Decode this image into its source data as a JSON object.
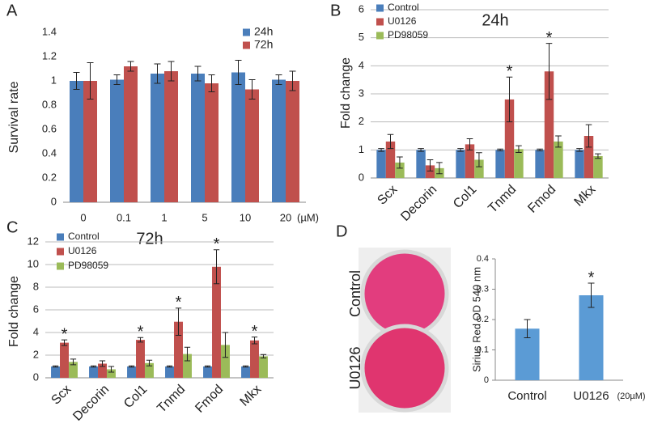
{
  "chart_data": [
    {
      "panel": "A",
      "type": "bar",
      "ylabel": "Survival rate",
      "categories": [
        "0",
        "0.1",
        "1",
        "5",
        "10",
        "20"
      ],
      "x_unit": "(µM)",
      "ylim": [
        0,
        1.4
      ],
      "yticks": [
        0,
        0.2,
        0.4,
        0.6,
        0.8,
        1,
        1.2,
        1.4
      ],
      "grid": false,
      "legend": "upper right",
      "series": [
        {
          "name": "24h",
          "color": "#4a7ebb",
          "values": [
            1.0,
            1.01,
            1.06,
            1.06,
            1.07,
            1.01
          ],
          "errors": [
            0.07,
            0.04,
            0.08,
            0.06,
            0.1,
            0.04
          ]
        },
        {
          "name": "72h",
          "color": "#c0504d",
          "values": [
            1.0,
            1.12,
            1.08,
            0.98,
            0.93,
            1.0
          ],
          "errors": [
            0.15,
            0.04,
            0.08,
            0.07,
            0.08,
            0.08
          ]
        }
      ]
    },
    {
      "panel": "B",
      "type": "bar",
      "title": "24h",
      "ylabel": "Fold change",
      "categories": [
        "Scx",
        "Decorin",
        "Col1",
        "Tnmd",
        "Fmod",
        "Mkx"
      ],
      "ylim": [
        0,
        6
      ],
      "yticks": [
        0,
        1,
        2,
        3,
        4,
        5,
        6
      ],
      "grid": true,
      "legend": "upper left",
      "series": [
        {
          "name": "Control",
          "color": "#4a7ebb",
          "values": [
            1,
            1,
            1,
            1,
            1,
            1
          ],
          "errors": [
            0.05,
            0.05,
            0.05,
            0.03,
            0.03,
            0.05
          ]
        },
        {
          "name": "U0126",
          "color": "#c0504d",
          "values": [
            1.3,
            0.45,
            1.2,
            2.8,
            3.8,
            1.5
          ],
          "errors": [
            0.25,
            0.2,
            0.2,
            0.8,
            1.0,
            0.4
          ],
          "annotations": [
            null,
            null,
            null,
            "*",
            "*",
            null
          ]
        },
        {
          "name": "PD98059",
          "color": "#9bbb59",
          "values": [
            0.55,
            0.35,
            0.65,
            1.03,
            1.3,
            0.78
          ],
          "errors": [
            0.2,
            0.2,
            0.25,
            0.12,
            0.2,
            0.08
          ]
        }
      ]
    },
    {
      "panel": "C",
      "type": "bar",
      "title": "72h",
      "ylabel": "Fold change",
      "categories": [
        "Scx",
        "Decorin",
        "Col1",
        "Tnmd",
        "Fmod",
        "Mkx"
      ],
      "ylim": [
        0,
        12
      ],
      "yticks": [
        0,
        2,
        4,
        6,
        8,
        10,
        12
      ],
      "grid": true,
      "legend": "upper left",
      "series": [
        {
          "name": "Control",
          "color": "#4a7ebb",
          "values": [
            1,
            1,
            1,
            1,
            1,
            1
          ],
          "errors": [
            0.05,
            0.05,
            0.05,
            0.05,
            0.05,
            0.05
          ]
        },
        {
          "name": "U0126",
          "color": "#c0504d",
          "values": [
            3.1,
            1.25,
            3.35,
            4.95,
            9.8,
            3.3
          ],
          "errors": [
            0.25,
            0.25,
            0.2,
            1.2,
            1.5,
            0.3
          ],
          "annotations": [
            "*",
            null,
            "*",
            "*",
            "*",
            "*"
          ]
        },
        {
          "name": "PD98059",
          "color": "#9bbb59",
          "values": [
            1.4,
            0.75,
            1.3,
            2.1,
            2.9,
            1.9
          ],
          "errors": [
            0.25,
            0.25,
            0.25,
            0.6,
            1.1,
            0.15
          ]
        }
      ]
    },
    {
      "panel": "D",
      "type": "bar",
      "ylabel": "Sirius Red OD 540 nm",
      "plate_labels": [
        "Control",
        "U0126"
      ],
      "categories": [
        "Control",
        "U0126"
      ],
      "x_unit": "(20µM)",
      "ylim": [
        0,
        0.4
      ],
      "yticks": [
        0,
        0.1,
        0.2,
        0.3,
        0.4
      ],
      "grid": false,
      "color": "#5b9bd5",
      "values": [
        0.17,
        0.28
      ],
      "errors": [
        0.03,
        0.04
      ],
      "annotations": [
        null,
        "*"
      ]
    }
  ]
}
